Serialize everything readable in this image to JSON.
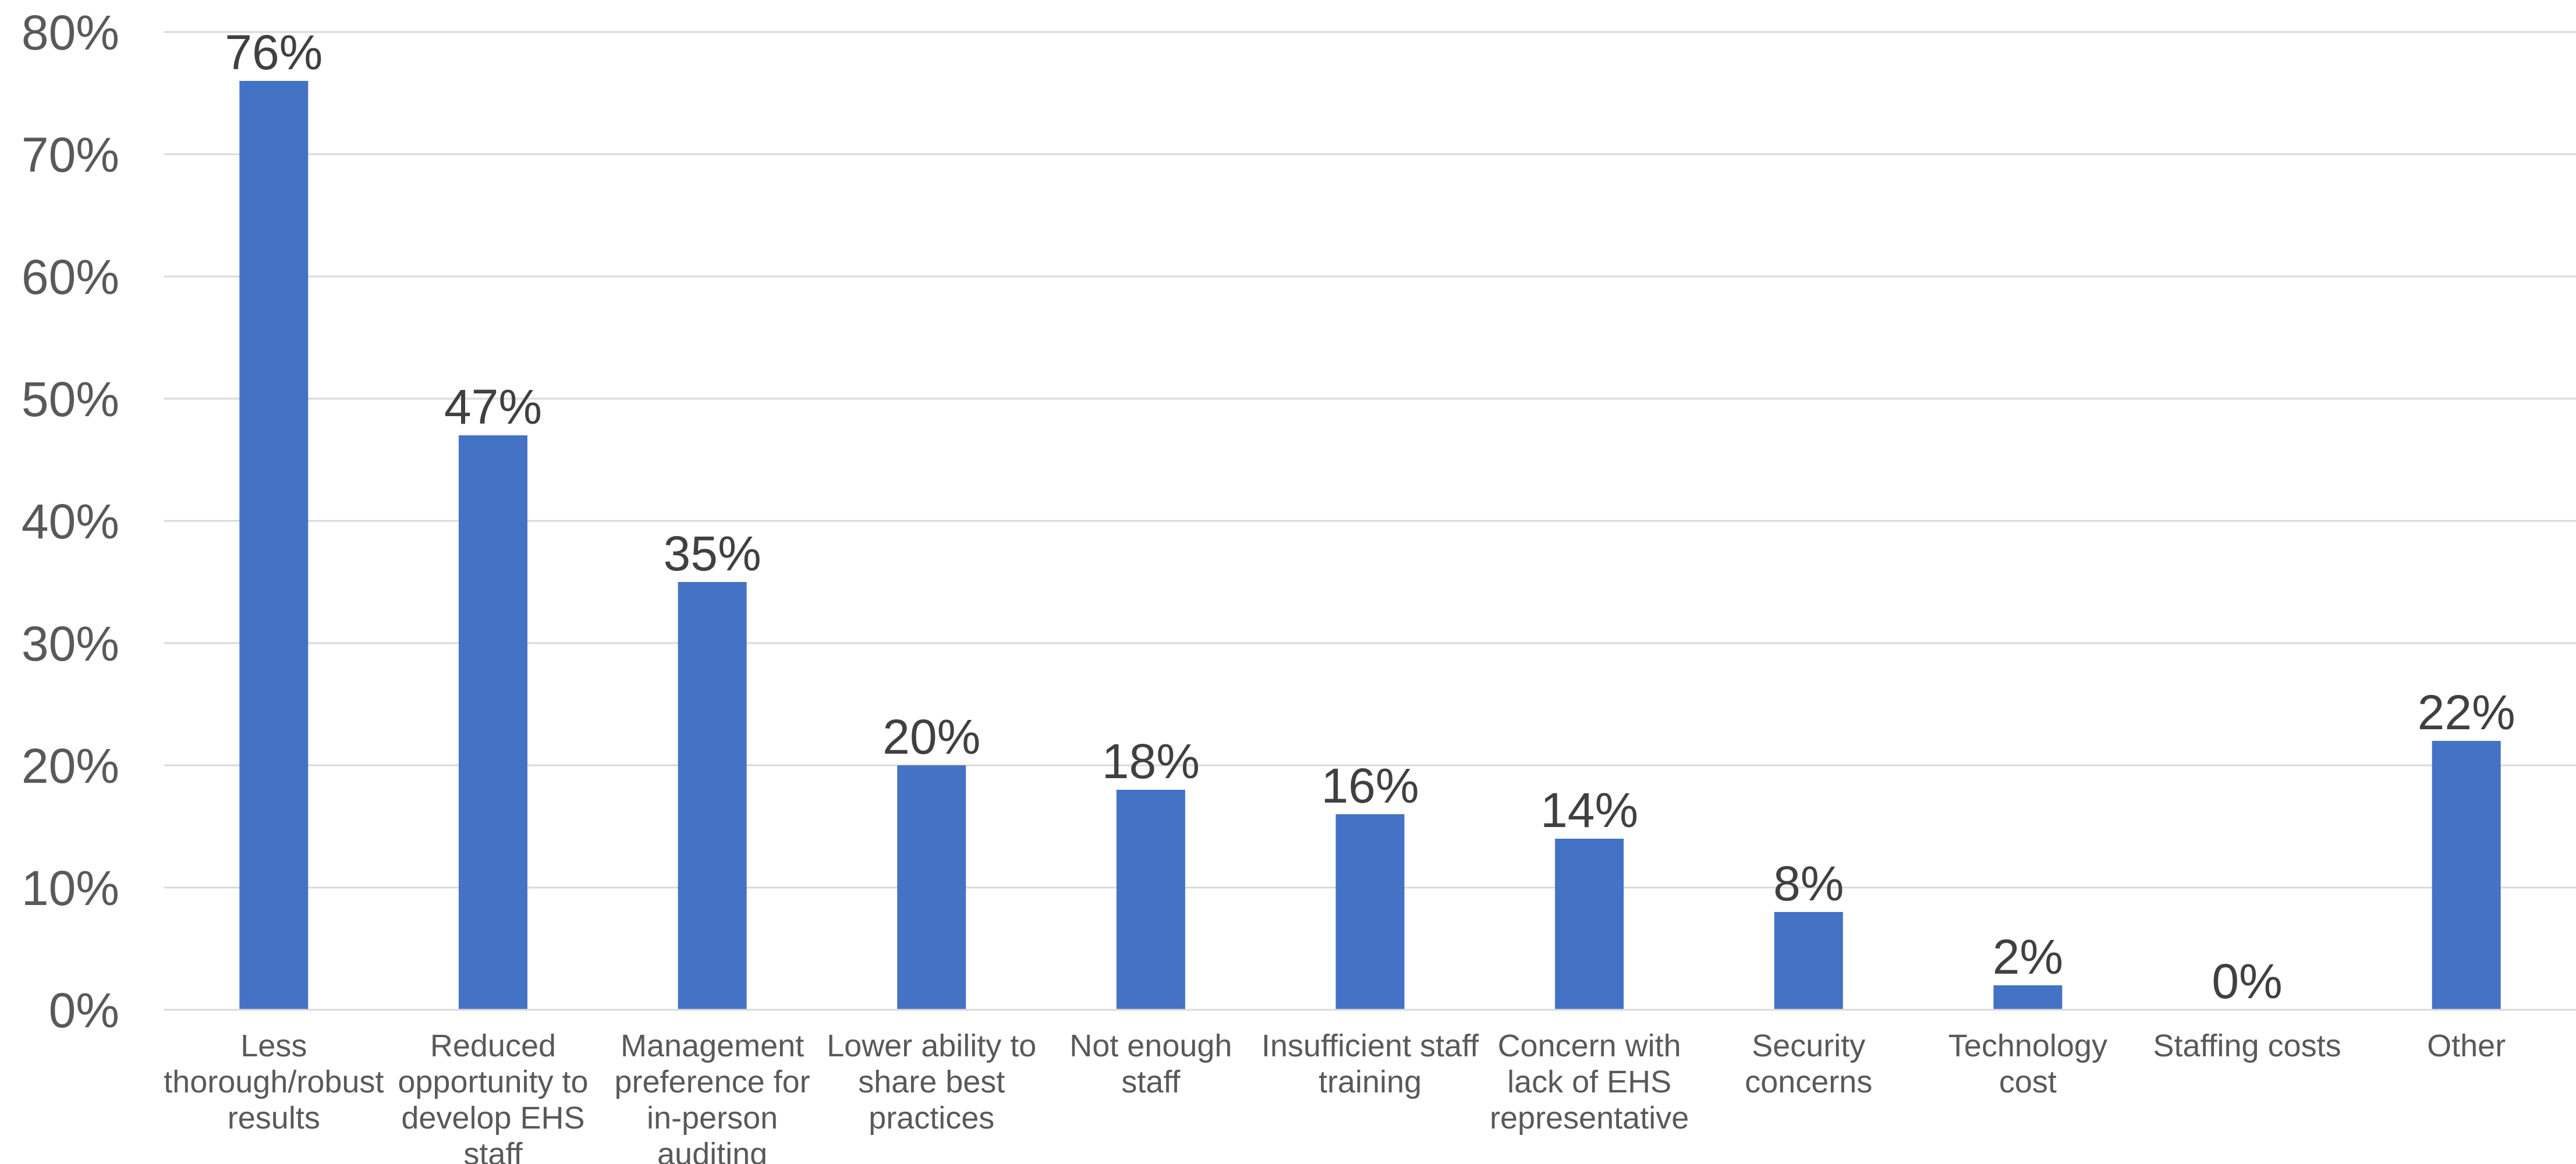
{
  "chart_data": {
    "type": "bar",
    "title": "",
    "xlabel": "",
    "ylabel": "",
    "categories": [
      "Less thorough/robust results",
      "Reduced opportunity to develop EHS staff",
      "Management preference for in-person auditing",
      "Lower ability to share best practices",
      "Not enough staff",
      "Insufficient staff training",
      "Concern with lack of EHS representative",
      "Security concerns",
      "Technology cost",
      "Staffing costs",
      "Other"
    ],
    "category_lines": [
      [
        "Less",
        "thorough/robust",
        "results"
      ],
      [
        "Reduced",
        "opportunity to",
        "develop EHS",
        "staff"
      ],
      [
        "Management",
        "preference for",
        "in-person",
        "auditing"
      ],
      [
        "Lower ability to",
        "share best",
        "practices"
      ],
      [
        "Not enough",
        "staff"
      ],
      [
        "Insufficient staff",
        "training"
      ],
      [
        "Concern with",
        "lack of EHS",
        "representative"
      ],
      [
        "Security",
        "concerns"
      ],
      [
        "Technology",
        "cost"
      ],
      [
        "Staffing costs"
      ],
      [
        "Other"
      ]
    ],
    "values": [
      76,
      47,
      35,
      20,
      18,
      16,
      14,
      8,
      2,
      0,
      22
    ],
    "data_labels": [
      "76%",
      "47%",
      "35%",
      "20%",
      "18%",
      "16%",
      "14%",
      "8%",
      "2%",
      "0%",
      "22%"
    ],
    "ylim": [
      0,
      80
    ],
    "y_ticks": [
      0,
      10,
      20,
      30,
      40,
      50,
      60,
      70,
      80
    ],
    "y_tick_labels": [
      "0%",
      "10%",
      "20%",
      "30%",
      "40%",
      "50%",
      "60%",
      "70%",
      "80%"
    ],
    "grid": true,
    "legend": "none",
    "bar_color": "#4472c4"
  }
}
